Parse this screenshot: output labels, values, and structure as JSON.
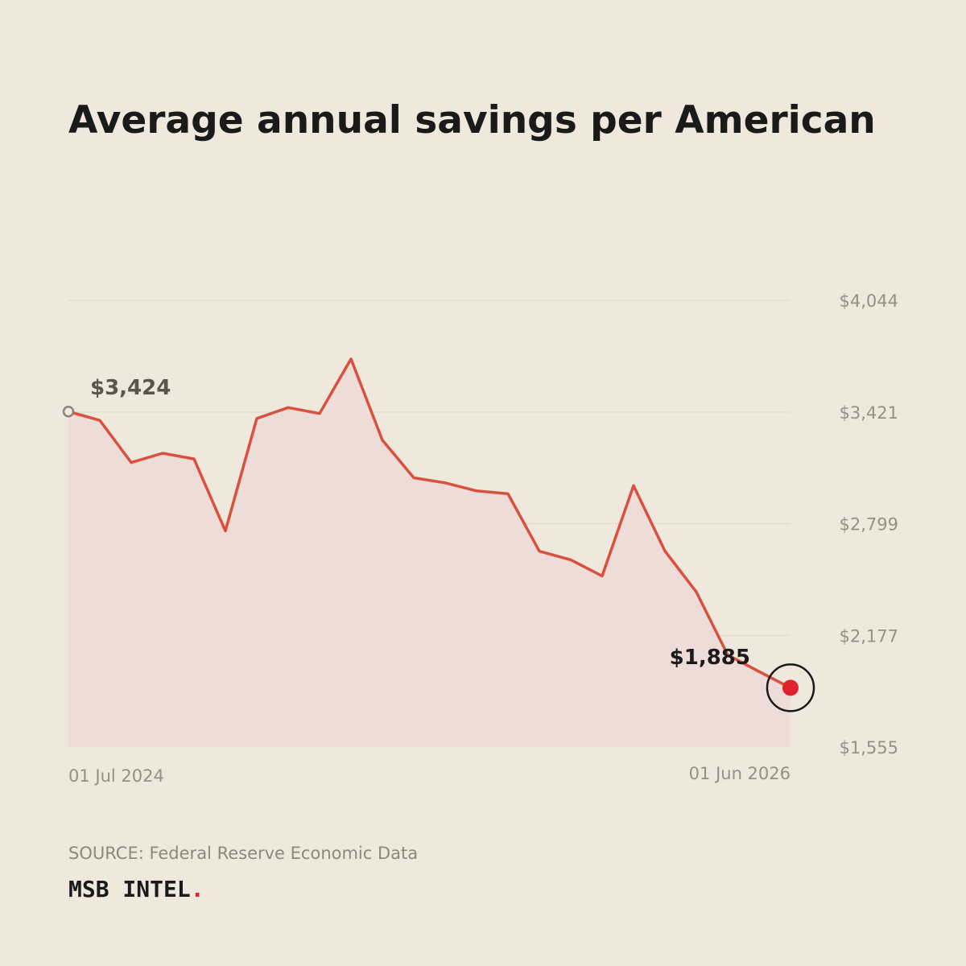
{
  "title": "Average annual savings per American",
  "source": "SOURCE: Federal Reserve Economic Data",
  "brand": {
    "name": "MSB INTEL",
    "dot": ".",
    "dot_color": "#e0222e"
  },
  "colors": {
    "background": "#efe8dc",
    "line": "#d9503f",
    "area_fill": "#eddcd7",
    "marker_end": "#e0222e",
    "gridline": "#ddd6ca",
    "axis_text": "#978f84"
  },
  "chart_data": {
    "type": "area",
    "title": "Average annual savings per American",
    "xlabel": "",
    "ylabel": "",
    "x_tick_labels": [
      "01 Jul 2024",
      "01 Jun 2026"
    ],
    "y_ticks": [
      4044,
      3421,
      2799,
      2177,
      1555
    ],
    "y_tick_labels": [
      "$4,044",
      "$3,421",
      "$2,799",
      "$2,177",
      "$1,555"
    ],
    "ylim": [
      1555,
      4044
    ],
    "grid": true,
    "y_axis_position": "right",
    "x": [
      "2024-07",
      "2024-08",
      "2024-09",
      "2024-10",
      "2024-11",
      "2024-12",
      "2025-01",
      "2025-02",
      "2025-03",
      "2025-04",
      "2025-05",
      "2025-06",
      "2025-07",
      "2025-08",
      "2025-09",
      "2025-10",
      "2025-11",
      "2025-12",
      "2026-01",
      "2026-02",
      "2026-03",
      "2026-04",
      "2026-05",
      "2026-06"
    ],
    "values": [
      3424,
      3375,
      3140,
      3192,
      3160,
      2759,
      3385,
      3446,
      3413,
      3717,
      3265,
      3055,
      3027,
      2982,
      2966,
      2646,
      2598,
      2508,
      3011,
      2647,
      2419,
      2068,
      1975,
      1885
    ],
    "annotations": [
      {
        "label": "$3,424",
        "point": "start"
      },
      {
        "label": "$1,885",
        "point": "end"
      }
    ]
  }
}
